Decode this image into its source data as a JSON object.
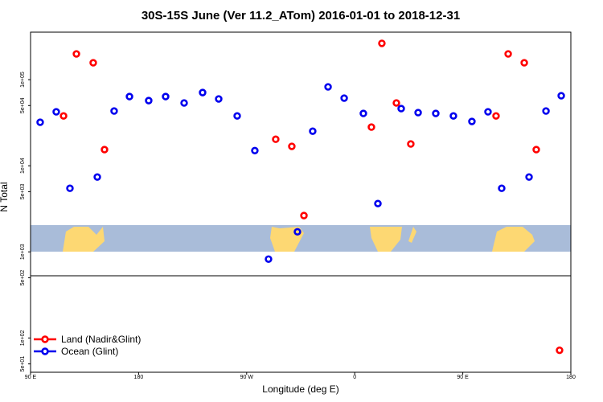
{
  "chart_data": {
    "type": "scatter",
    "title": "30S-15S June (Ver 11.2_ATom)   2016-01-01 to 2018-12-31",
    "x_label": "Longitude (deg E)",
    "y_label": "N Total",
    "ylog": true,
    "xlim": [
      90,
      540
    ],
    "ylim": [
      40,
      356000
    ],
    "xticks": [
      {
        "value": 90,
        "label": "90 E"
      },
      {
        "value": 180,
        "label": "180"
      },
      {
        "value": 270,
        "label": "90 W"
      },
      {
        "value": 360,
        "label": "0"
      },
      {
        "value": 450,
        "label": "90 E"
      },
      {
        "value": 540,
        "label": "180"
      }
    ],
    "yticks": [
      {
        "value": 50,
        "label": "5e+01"
      },
      {
        "value": 100,
        "label": "1e+02"
      },
      {
        "value": 500,
        "label": "5e+02"
      },
      {
        "value": 1000,
        "label": "1e+03"
      },
      {
        "value": 5000,
        "label": "5e+03"
      },
      {
        "value": 10000,
        "label": "1e+04"
      },
      {
        "value": 50000,
        "label": "5e+04"
      },
      {
        "value": 100000,
        "label": "1e+05"
      }
    ],
    "legend": "bottom-left",
    "series": [
      {
        "name": "Land (Nadir&Glint)",
        "color": "#ff0000",
        "x": [
          117.5,
          128.2,
          142.2,
          151.6,
          294.2,
          307.6,
          317.7,
          373.9,
          382.6,
          394.7,
          406.7,
          477.7,
          487.8,
          501.2,
          511.2,
          530.6
        ],
        "values": [
          37900,
          199000,
          157000,
          15400,
          20300,
          16800,
          2640,
          28100,
          264000,
          53600,
          17900,
          37900,
          199000,
          157000,
          15400,
          72
        ]
      },
      {
        "name": "Ocean (Glint)",
        "color": "#0000ee",
        "x": [
          98.0,
          111.4,
          122.8,
          145.6,
          159.6,
          172.4,
          188.4,
          202.5,
          217.9,
          233.3,
          246.7,
          262.1,
          276.8,
          288.2,
          312.3,
          325.0,
          337.8,
          351.2,
          367.2,
          379.3,
          398.7,
          412.8,
          427.5,
          442.2,
          457.6,
          471.0,
          482.4,
          505.2,
          519.3,
          532.0
        ],
        "values": [
          32000,
          42300,
          5470,
          7400,
          43200,
          63600,
          57100,
          63600,
          53600,
          70800,
          59700,
          37900,
          15000,
          824,
          1710,
          25200,
          82400,
          61000,
          40500,
          3640,
          46100,
          41400,
          40500,
          37900,
          32700,
          42300,
          5470,
          7400,
          43200,
          65000
        ]
      }
    ]
  }
}
